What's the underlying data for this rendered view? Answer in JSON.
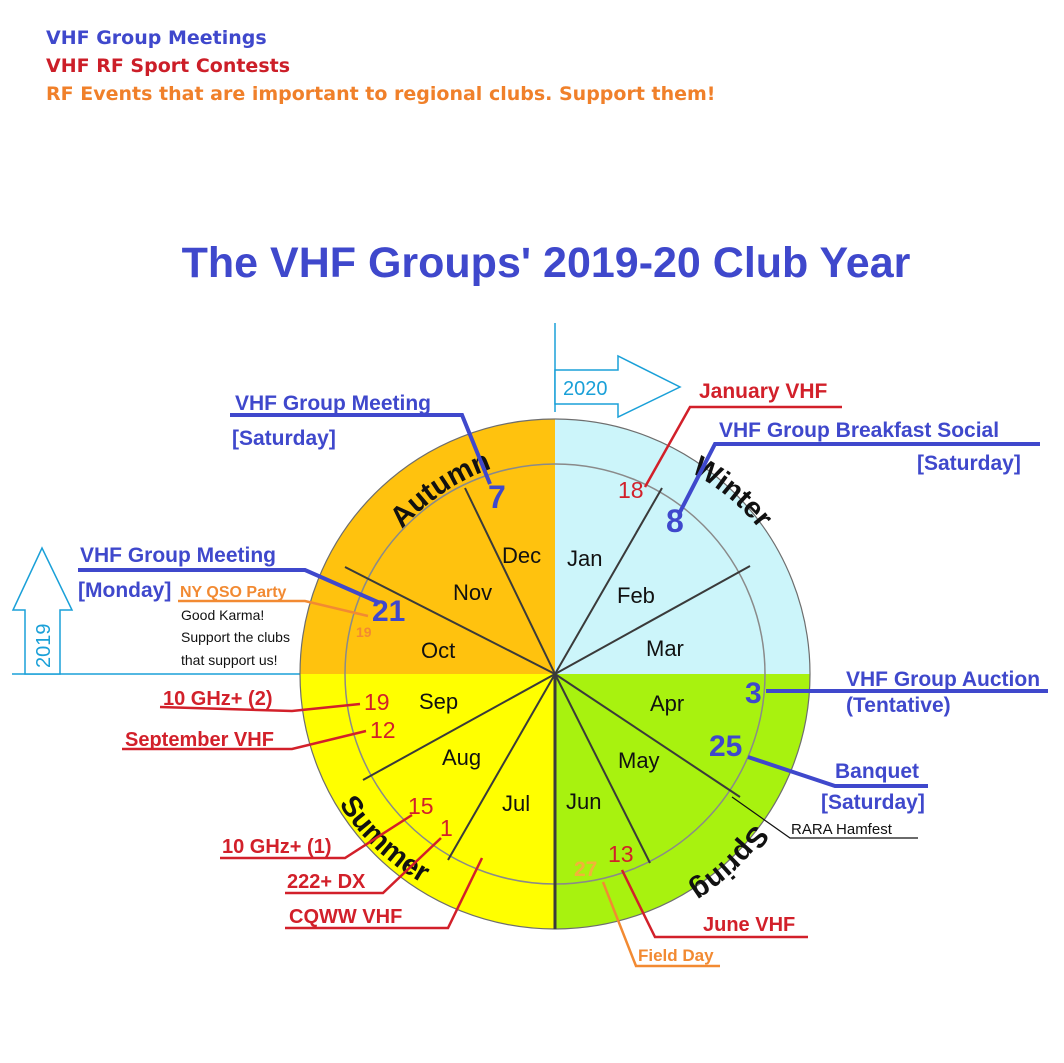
{
  "legend": {
    "meetings": "VHF Group Meetings",
    "contests": "VHF RF Sport Contests",
    "events": "RF Events that are important to regional clubs. Support them!"
  },
  "colors": {
    "blue": "#3f48cc",
    "red": "#d2202a",
    "orange": "#f28a32",
    "autumn": "#ffc20e",
    "winter": "#ccf5fa",
    "spring": "#a8f20f",
    "summer": "#ffff00",
    "axis": "#1aa0d8"
  },
  "title": "The VHF Groups' 2019-20 Club Year",
  "seasons": {
    "autumn": "Autumn",
    "winter": "Winter",
    "spring": "Spring",
    "summer": "Summer"
  },
  "months": [
    "Jan",
    "Feb",
    "Mar",
    "Apr",
    "May",
    "Jun",
    "Jul",
    "Aug",
    "Sep",
    "Oct",
    "Nov",
    "Dec"
  ],
  "year_markers": {
    "y2020": "2020",
    "y2019": "2019"
  },
  "dates": {
    "dec_meeting": "7",
    "jan_vhf": "18",
    "breakfast": "8",
    "auction": "3",
    "banquet": "25",
    "june_vhf": "13",
    "field_day": "27",
    "cqww": "1",
    "ghz1": "15",
    "sept_vhf": "12",
    "ghz2": "19",
    "oct_meeting": "21",
    "ny_qso": "19"
  },
  "events": {
    "meeting_sat_title": "VHF Group Meeting",
    "meeting_sat_sub": "[Saturday]",
    "january_vhf": "January VHF",
    "breakfast_title": "VHF Group Breakfast Social",
    "breakfast_sub": "[Saturday]",
    "meeting_mon_title": "VHF Group Meeting",
    "meeting_mon_sub": "[Monday]",
    "ny_qso": "NY QSO Party",
    "karma_1": "Good Karma!",
    "karma_2": "Support the clubs",
    "karma_3": "that support us!",
    "auction_title": "VHF Group Auction",
    "auction_sub": "(Tentative)",
    "banquet_title": "Banquet",
    "banquet_sub": "[Saturday]",
    "hamfest": "RARA Hamfest",
    "ghz2": "10 GHz+ (2)",
    "september_vhf": "September VHF",
    "ghz1": "10 GHz+ (1)",
    "dx222": "222+ DX",
    "cqww": "CQWW VHF",
    "june_vhf": "June VHF",
    "field_day": "Field Day"
  }
}
